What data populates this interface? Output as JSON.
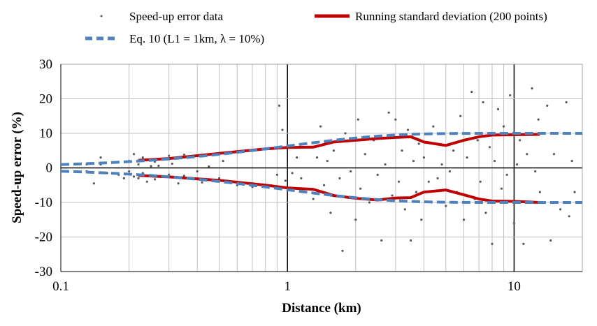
{
  "chart_data": {
    "type": "scatter",
    "title": "",
    "xlabel": "Distance (km)",
    "ylabel": "Speed-up error (%)",
    "xscale": "log",
    "xlim": [
      0.1,
      20
    ],
    "ylim": [
      -30,
      30
    ],
    "x_ticks": [
      "0.1",
      "1",
      "10"
    ],
    "x_tick_values": [
      0.1,
      1,
      10
    ],
    "y_ticks": [
      "30",
      "20",
      "10",
      "0",
      "-10",
      "-20",
      "-30"
    ],
    "y_tick_values": [
      30,
      20,
      10,
      0,
      -10,
      -20,
      -30
    ],
    "grid": true,
    "legend_position": "top",
    "colors": {
      "scatter": "#595959",
      "running": "#c00000",
      "eq10": "#4f81bd"
    },
    "legend": [
      {
        "label": "Speed-up error data",
        "series": "scatter"
      },
      {
        "label": "Running standard deviation (200 points)",
        "series": "running"
      },
      {
        "label": "Eq. 10 (L1 = 1km, λ = 10%)",
        "series": "eq10"
      }
    ],
    "series": [
      {
        "name": "Speed-up error data",
        "kind": "scatter",
        "points": [
          [
            0.13,
            -1
          ],
          [
            0.13,
            1
          ],
          [
            0.14,
            -4.5
          ],
          [
            0.15,
            3
          ],
          [
            0.15,
            1
          ],
          [
            0.16,
            -1.5
          ],
          [
            0.18,
            -2
          ],
          [
            0.19,
            -3
          ],
          [
            0.2,
            2
          ],
          [
            0.2,
            -1
          ],
          [
            0.21,
            4
          ],
          [
            0.21,
            -2.5
          ],
          [
            0.22,
            1
          ],
          [
            0.22,
            -3
          ],
          [
            0.23,
            3
          ],
          [
            0.23,
            -1.5
          ],
          [
            0.24,
            2.2
          ],
          [
            0.24,
            -4
          ],
          [
            0.25,
            0.5
          ],
          [
            0.25,
            -2.2
          ],
          [
            0.26,
            1.8
          ],
          [
            0.26,
            -3.3
          ],
          [
            0.27,
            0.6
          ],
          [
            0.3,
            -2
          ],
          [
            0.3,
            3.5
          ],
          [
            0.31,
            1.2
          ],
          [
            0.33,
            -4.5
          ],
          [
            0.35,
            -2.3
          ],
          [
            0.35,
            3.8
          ],
          [
            0.4,
            -1
          ],
          [
            0.42,
            -4.2
          ],
          [
            0.45,
            0.4
          ],
          [
            0.5,
            -3
          ],
          [
            0.52,
            2
          ],
          [
            0.6,
            -5
          ],
          [
            0.7,
            -5.5
          ],
          [
            0.85,
            -5.1
          ],
          [
            0.9,
            -2
          ],
          [
            0.92,
            18
          ],
          [
            0.95,
            11
          ],
          [
            0.98,
            -3.7
          ],
          [
            1.05,
            -1.5
          ],
          [
            1.1,
            3
          ],
          [
            1.15,
            -3
          ],
          [
            1.2,
            7
          ],
          [
            1.3,
            -9
          ],
          [
            1.35,
            3
          ],
          [
            1.4,
            12
          ],
          [
            1.45,
            -5
          ],
          [
            1.5,
            2
          ],
          [
            1.55,
            -13
          ],
          [
            1.6,
            5
          ],
          [
            1.7,
            -3
          ],
          [
            1.75,
            -24
          ],
          [
            1.8,
            10
          ],
          [
            1.9,
            -1
          ],
          [
            2,
            -15
          ],
          [
            2.05,
            14
          ],
          [
            2.1,
            -6
          ],
          [
            2.2,
            4
          ],
          [
            2.3,
            -10
          ],
          [
            2.4,
            8
          ],
          [
            2.5,
            -2
          ],
          [
            2.6,
            -21
          ],
          [
            2.7,
            1
          ],
          [
            2.8,
            16
          ],
          [
            2.9,
            -8
          ],
          [
            3,
            14
          ],
          [
            3.1,
            -4
          ],
          [
            3.2,
            5
          ],
          [
            3.3,
            -12
          ],
          [
            3.4,
            11
          ],
          [
            3.5,
            -21
          ],
          [
            3.6,
            2
          ],
          [
            3.7,
            -7
          ],
          [
            3.8,
            7
          ],
          [
            3.9,
            -15
          ],
          [
            4,
            3
          ],
          [
            4.2,
            -4
          ],
          [
            4.4,
            12
          ],
          [
            4.6,
            -3
          ],
          [
            4.8,
            1
          ],
          [
            5,
            -11
          ],
          [
            5.2,
            -1
          ],
          [
            5.4,
            5
          ],
          [
            5.6,
            -7
          ],
          [
            5.8,
            15
          ],
          [
            6,
            -15
          ],
          [
            6.2,
            3
          ],
          [
            6.5,
            22
          ],
          [
            6.7,
            -9
          ],
          [
            6.9,
            8
          ],
          [
            7.1,
            -4
          ],
          [
            7.3,
            19
          ],
          [
            7.5,
            -13
          ],
          [
            7.8,
            6
          ],
          [
            8,
            -22
          ],
          [
            8.2,
            2
          ],
          [
            8.5,
            17
          ],
          [
            8.8,
            -6
          ],
          [
            9,
            12
          ],
          [
            9.3,
            -2
          ],
          [
            9.6,
            21
          ],
          [
            10,
            -16
          ],
          [
            10.3,
            1
          ],
          [
            10.6,
            8
          ],
          [
            11,
            -22
          ],
          [
            11.4,
            4
          ],
          [
            11.8,
            -10
          ],
          [
            12,
            23
          ],
          [
            12.4,
            -1
          ],
          [
            12.8,
            14
          ],
          [
            13,
            -7
          ],
          [
            14,
            18
          ],
          [
            14.5,
            -21
          ],
          [
            15,
            4
          ],
          [
            16,
            -12
          ],
          [
            17,
            19
          ],
          [
            17.5,
            -14
          ],
          [
            18,
            2
          ],
          [
            18.5,
            -7
          ]
        ]
      },
      {
        "name": "Running standard deviation (200 points)",
        "kind": "line",
        "upper": [
          [
            0.22,
            2.2
          ],
          [
            0.3,
            2.7
          ],
          [
            0.5,
            4.2
          ],
          [
            0.8,
            5.5
          ],
          [
            1,
            5.9
          ],
          [
            1.3,
            6
          ],
          [
            1.6,
            7.5
          ],
          [
            2,
            8
          ],
          [
            2.5,
            8.5
          ],
          [
            3,
            8.8
          ],
          [
            3.5,
            9
          ],
          [
            4,
            7.5
          ],
          [
            5,
            6.5
          ],
          [
            6,
            8
          ],
          [
            7,
            9
          ],
          [
            8,
            9.5
          ],
          [
            10,
            9.6
          ],
          [
            13,
            9.7
          ]
        ],
        "lower": [
          [
            0.22,
            -2.2
          ],
          [
            0.3,
            -2.6
          ],
          [
            0.5,
            -3.6
          ],
          [
            0.8,
            -5
          ],
          [
            1,
            -5.8
          ],
          [
            1.3,
            -6.2
          ],
          [
            1.6,
            -8
          ],
          [
            2,
            -8.8
          ],
          [
            2.5,
            -9.3
          ],
          [
            3,
            -8.7
          ],
          [
            3.5,
            -8.6
          ],
          [
            4,
            -7
          ],
          [
            5,
            -6.4
          ],
          [
            6,
            -7.8
          ],
          [
            7,
            -9
          ],
          [
            8,
            -9.6
          ],
          [
            10,
            -9.7
          ],
          [
            13,
            -10
          ]
        ]
      },
      {
        "name": "Eq. 10 (L1 = 1km, λ = 10%)",
        "kind": "line",
        "L1": 1,
        "lambda": 10
      }
    ]
  }
}
